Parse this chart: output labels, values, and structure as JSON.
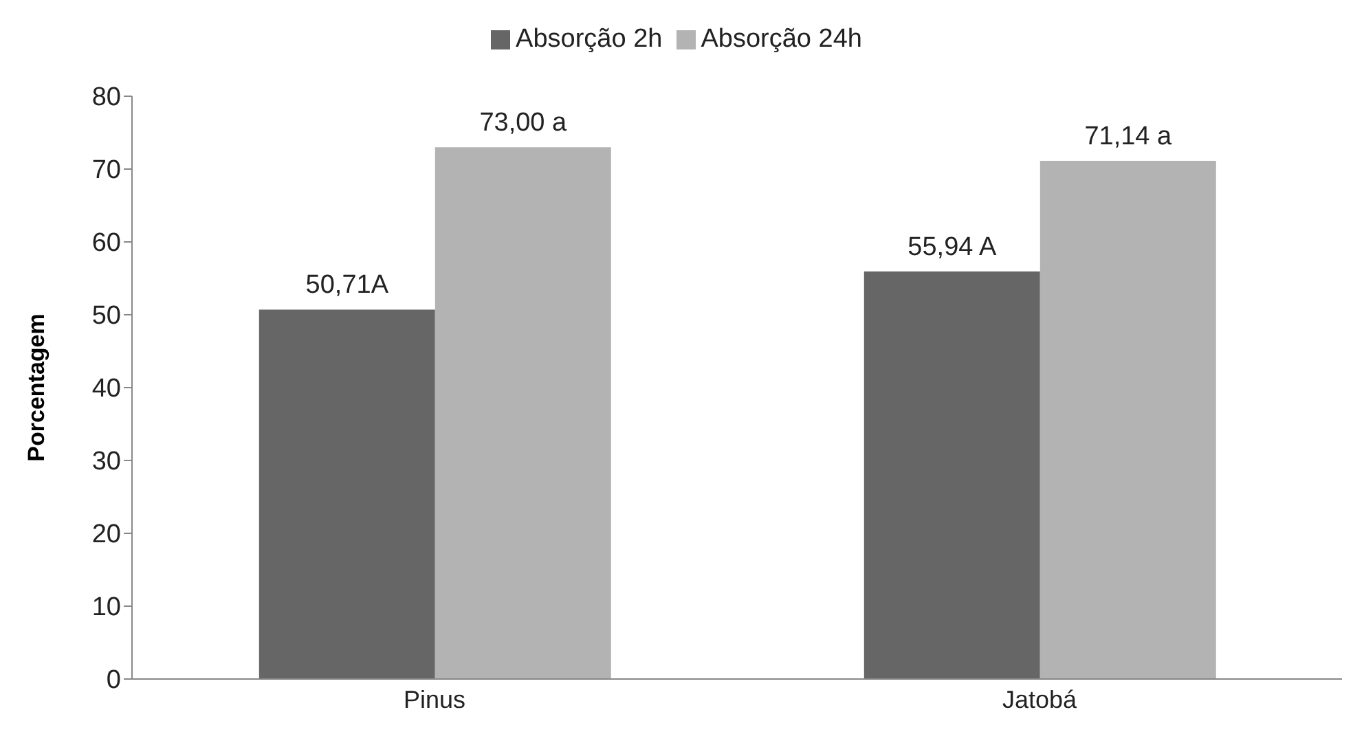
{
  "chart_data": {
    "type": "bar",
    "ylabel": "Porcentagem",
    "categories": [
      "Pinus",
      "Jatobá"
    ],
    "series": [
      {
        "name": "Absorção 2h",
        "color": "#666666",
        "values": [
          50.71,
          55.94
        ],
        "value_labels": [
          "50,71A",
          "55,94 A"
        ]
      },
      {
        "name": "Absorção 24h",
        "color": "#b3b3b3",
        "values": [
          73.0,
          71.14
        ],
        "value_labels": [
          "73,00 a",
          "71,14 a"
        ]
      }
    ],
    "ylim": [
      0,
      80
    ],
    "yticks": [
      0,
      10,
      20,
      30,
      40,
      50,
      60,
      70,
      80
    ],
    "grid": false,
    "legend": "top"
  }
}
